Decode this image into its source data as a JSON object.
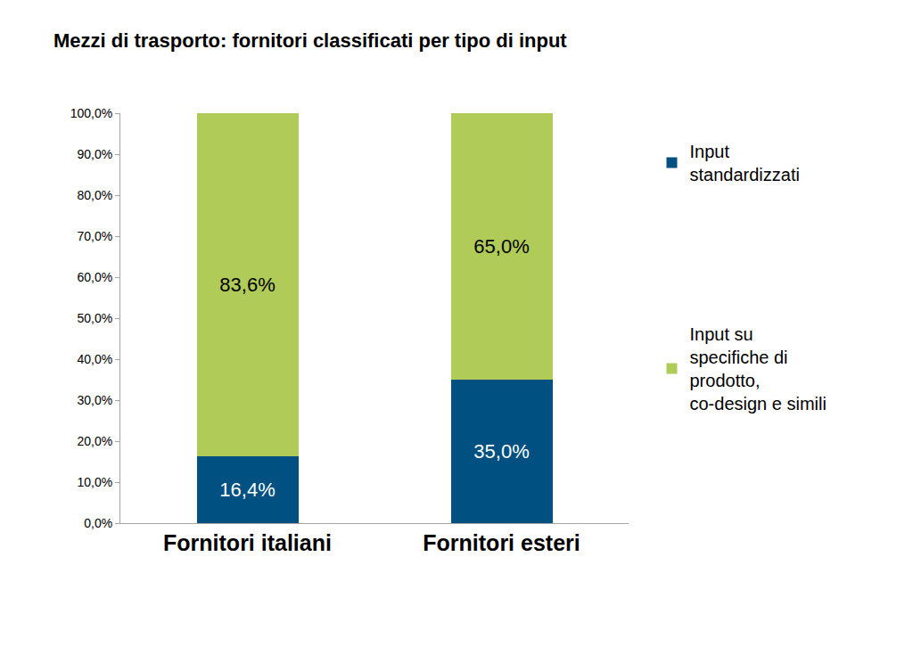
{
  "chart_data": {
    "type": "bar",
    "title": "Mezzi di trasporto: fornitori classificati per tipo di input",
    "categories": [
      "Fornitori italiani",
      "Fornitori esteri"
    ],
    "series": [
      {
        "name": "Input standardizzati",
        "color": "#005082",
        "values": [
          16.4,
          35.0
        ],
        "value_labels": [
          "16,4%",
          "35,0%"
        ]
      },
      {
        "name": "Input su specifiche di prodotto, co-design e simili",
        "color": "#b0cb58",
        "values": [
          83.6,
          65.0
        ],
        "value_labels": [
          "83,6%",
          "65,0%"
        ]
      }
    ],
    "ylim": [
      0,
      100
    ],
    "yticks": [
      {
        "value": 0,
        "label": "0,0%"
      },
      {
        "value": 10,
        "label": "10,0%"
      },
      {
        "value": 20,
        "label": "20,0%"
      },
      {
        "value": 30,
        "label": "30,0%"
      },
      {
        "value": 40,
        "label": "40,0%"
      },
      {
        "value": 50,
        "label": "50,0%"
      },
      {
        "value": 60,
        "label": "60,0%"
      },
      {
        "value": 70,
        "label": "70,0%"
      },
      {
        "value": 80,
        "label": "80,0%"
      },
      {
        "value": 90,
        "label": "90,0%"
      },
      {
        "value": 100,
        "label": "100,0%"
      }
    ],
    "stacked": true,
    "data_labels": true,
    "grid": false,
    "legend": "right"
  }
}
